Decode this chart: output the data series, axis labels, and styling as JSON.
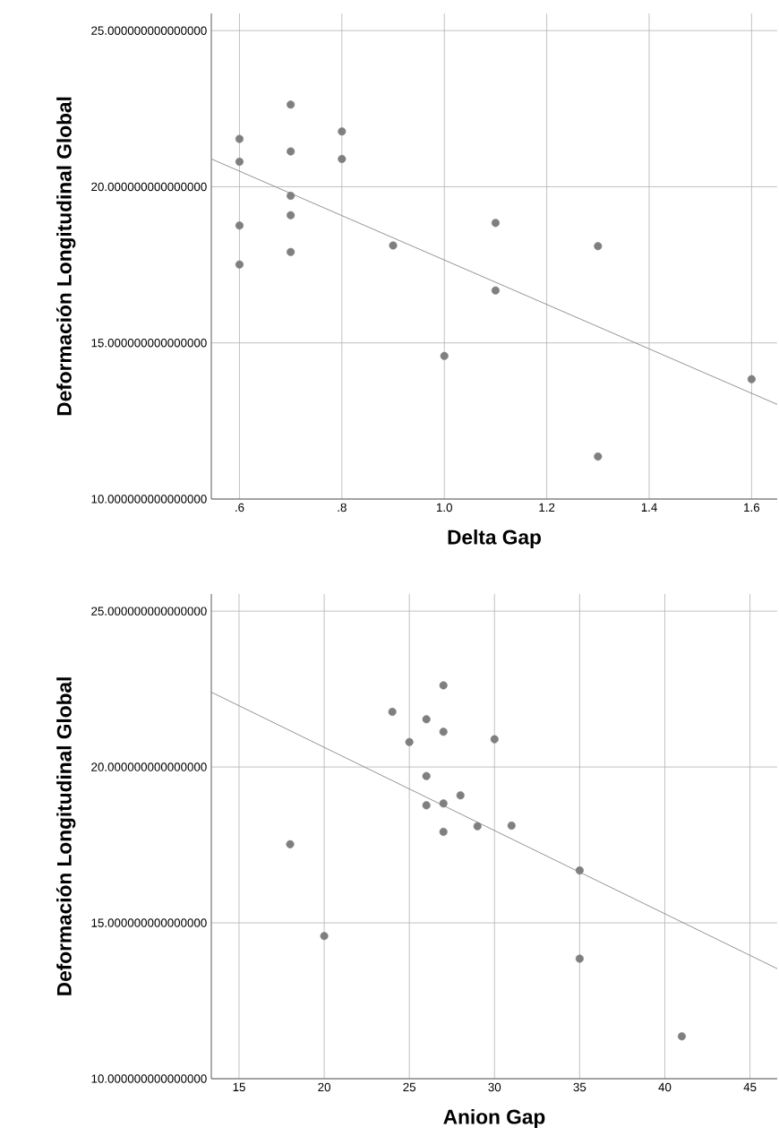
{
  "chart_data": [
    {
      "type": "scatter",
      "xlabel": "Delta Gap",
      "ylabel": "Deformación Longitudinal Global",
      "xlim": [
        0.545,
        1.65
      ],
      "ylim": [
        10,
        25.55
      ],
      "xticks": [
        {
          "value": 0.6,
          "label": ".6"
        },
        {
          "value": 0.8,
          "label": ".8"
        },
        {
          "value": 1.0,
          "label": "1.0"
        },
        {
          "value": 1.2,
          "label": "1.2"
        },
        {
          "value": 1.4,
          "label": "1.4"
        },
        {
          "value": 1.6,
          "label": "1.6"
        }
      ],
      "yticks": [
        {
          "value": 10,
          "label": "10.000000000000000"
        },
        {
          "value": 15,
          "label": "15.000000000000000"
        },
        {
          "value": 20,
          "label": "20.000000000000000"
        },
        {
          "value": 25,
          "label": "25.000000000000000"
        }
      ],
      "grid": true,
      "marker": "circle",
      "series": [
        {
          "color": "#7f7f7f",
          "x": [
            0.6,
            0.6,
            0.6,
            0.6,
            0.7,
            0.7,
            0.7,
            0.7,
            0.7,
            0.8,
            0.8,
            0.9,
            1.0,
            1.1,
            1.1,
            1.3,
            1.3,
            1.6
          ],
          "values": [
            21.53,
            20.8,
            18.76,
            17.51,
            22.63,
            21.13,
            19.71,
            19.09,
            17.91,
            21.77,
            20.89,
            18.12,
            14.58,
            18.84,
            16.68,
            18.1,
            11.36,
            13.84
          ]
        },
        {
          "type": "line",
          "color": "#8c8c8c",
          "marker": "none",
          "x": [
            0.545,
            1.65
          ],
          "values": [
            20.89,
            13.03
          ]
        }
      ]
    },
    {
      "type": "scatter",
      "xlabel": "Anion Gap",
      "ylabel": "Deformación Longitudinal Global",
      "xlim": [
        13.37,
        46.6
      ],
      "ylim": [
        10,
        25.55
      ],
      "xticks": [
        15,
        20,
        25,
        30,
        35,
        40,
        45
      ],
      "yticks": [
        {
          "value": 10,
          "label": "10.000000000000000"
        },
        {
          "value": 15,
          "label": "15.000000000000000"
        },
        {
          "value": 20,
          "label": "20.000000000000000"
        },
        {
          "value": 25,
          "label": "25.000000000000000"
        }
      ],
      "grid": true,
      "marker": "circle",
      "series": [
        {
          "color": "#7f7f7f",
          "x": [
            18,
            20,
            24,
            25,
            26,
            26,
            26,
            27,
            27,
            27,
            27,
            28,
            29,
            30,
            31,
            35,
            35,
            41
          ],
          "values": [
            17.52,
            14.58,
            21.77,
            20.8,
            21.53,
            19.71,
            18.77,
            22.62,
            21.13,
            18.83,
            17.92,
            19.09,
            18.1,
            20.89,
            18.12,
            16.68,
            13.85,
            11.36
          ]
        },
        {
          "type": "line",
          "color": "#8c8c8c",
          "marker": "none",
          "x": [
            13.37,
            46.6
          ],
          "values": [
            22.4,
            13.53
          ]
        }
      ]
    }
  ]
}
